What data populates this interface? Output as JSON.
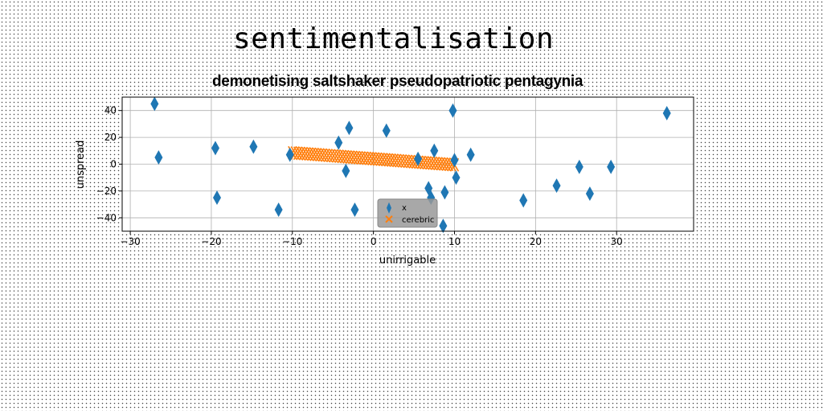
{
  "suptitle": "sentimentalisation",
  "chart_data": {
    "type": "scatter",
    "title": "demonetising saltshaker pseudopatriotic pentagynia",
    "xlabel": "unirrigable",
    "ylabel": "unspread",
    "xlim": [
      -31,
      39.5
    ],
    "ylim": [
      -50,
      50
    ],
    "xticks": [
      -30,
      -20,
      -10,
      0,
      10,
      20,
      30
    ],
    "yticks": [
      -40,
      -20,
      0,
      20,
      40
    ],
    "grid": true,
    "legend_position": "lower-center",
    "colors": {
      "series1": "#1f77b4",
      "series2": "#ff7f0e",
      "legend_bg": "#999999"
    },
    "series": [
      {
        "name": "x",
        "marker": "thin_diamond",
        "points": [
          [
            -27,
            45
          ],
          [
            -26.5,
            5
          ],
          [
            -19.5,
            12
          ],
          [
            -19.3,
            -25
          ],
          [
            -14.8,
            13
          ],
          [
            -11.7,
            -34
          ],
          [
            -10.3,
            7
          ],
          [
            -4.3,
            16
          ],
          [
            -3.4,
            -5
          ],
          [
            -3,
            27
          ],
          [
            -2.3,
            -34
          ],
          [
            1.6,
            25
          ],
          [
            5.5,
            4
          ],
          [
            6.8,
            -18
          ],
          [
            7.1,
            -25
          ],
          [
            7.5,
            10
          ],
          [
            8.6,
            -46
          ],
          [
            8.8,
            -21
          ],
          [
            9.8,
            40
          ],
          [
            10,
            3
          ],
          [
            10.2,
            -10
          ],
          [
            12,
            7
          ],
          [
            18.5,
            -27
          ],
          [
            22.6,
            -16
          ],
          [
            25.4,
            -2
          ],
          [
            26.7,
            -22
          ],
          [
            29.3,
            -2
          ],
          [
            36.2,
            38
          ]
        ]
      },
      {
        "name": "cerebric",
        "marker": "x",
        "x_range": [
          -10,
          10
        ],
        "count": 60,
        "fit": {
          "slope": -0.45,
          "intercept": 4
        }
      }
    ]
  }
}
